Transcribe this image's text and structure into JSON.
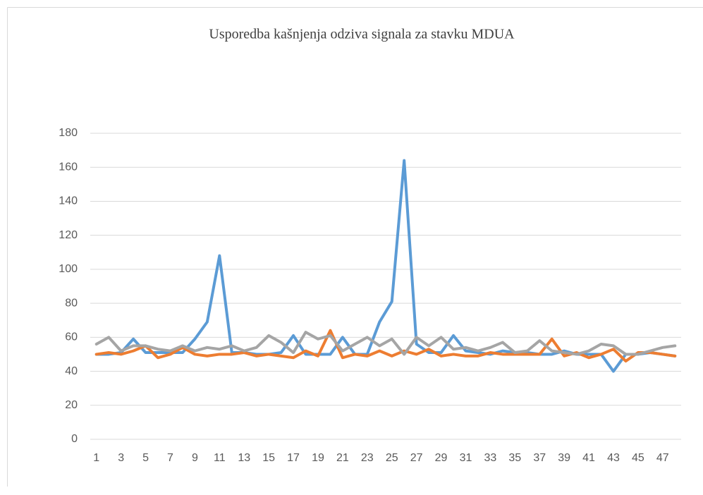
{
  "chart_data": {
    "type": "line",
    "title": "Usporedba kašnjenja odziva signala za stavku MDUA",
    "categories": [
      1,
      null,
      3,
      null,
      5,
      null,
      7,
      null,
      9,
      null,
      11,
      null,
      13,
      null,
      15,
      null,
      17,
      null,
      19,
      null,
      21,
      null,
      23,
      null,
      25,
      null,
      27,
      null,
      29,
      null,
      31,
      null,
      33,
      null,
      35,
      null,
      37,
      null,
      39,
      null,
      41,
      null,
      43,
      null,
      45,
      null,
      47,
      null
    ],
    "series": [
      {
        "color": "#5b9bd5",
        "values": [
          50,
          50,
          51,
          59,
          51,
          51,
          51,
          51,
          59,
          69,
          108,
          51,
          51,
          50,
          50,
          51,
          61,
          50,
          50,
          50,
          60,
          50,
          50,
          69,
          81,
          164,
          56,
          51,
          51,
          61,
          52,
          51,
          50,
          52,
          51,
          51,
          50,
          50,
          52,
          50,
          50,
          50,
          40,
          50,
          50,
          51,
          50,
          49
        ]
      },
      {
        "color": "#ed7d31",
        "values": [
          50,
          51,
          50,
          52,
          55,
          48,
          50,
          54,
          50,
          49,
          50,
          50,
          51,
          49,
          50,
          49,
          48,
          52,
          49,
          64,
          48,
          50,
          49,
          52,
          49,
          52,
          50,
          53,
          49,
          50,
          49,
          49,
          51,
          50,
          50,
          50,
          50,
          59,
          49,
          51,
          48,
          50,
          53,
          46,
          51,
          51,
          50,
          49
        ]
      },
      {
        "color": "#a5a5a5",
        "values": [
          56,
          60,
          52,
          55,
          55,
          53,
          52,
          55,
          52,
          54,
          53,
          55,
          52,
          54,
          61,
          57,
          51,
          63,
          59,
          61,
          52,
          56,
          60,
          55,
          59,
          50,
          60,
          55,
          60,
          53,
          54,
          52,
          54,
          57,
          51,
          52,
          58,
          52,
          51,
          50,
          52,
          56,
          55,
          50,
          50,
          52,
          54,
          55
        ]
      }
    ],
    "ylim": [
      0,
      180
    ],
    "yticks": [
      0,
      20,
      40,
      60,
      80,
      100,
      120,
      140,
      160,
      180
    ],
    "grid": true
  }
}
